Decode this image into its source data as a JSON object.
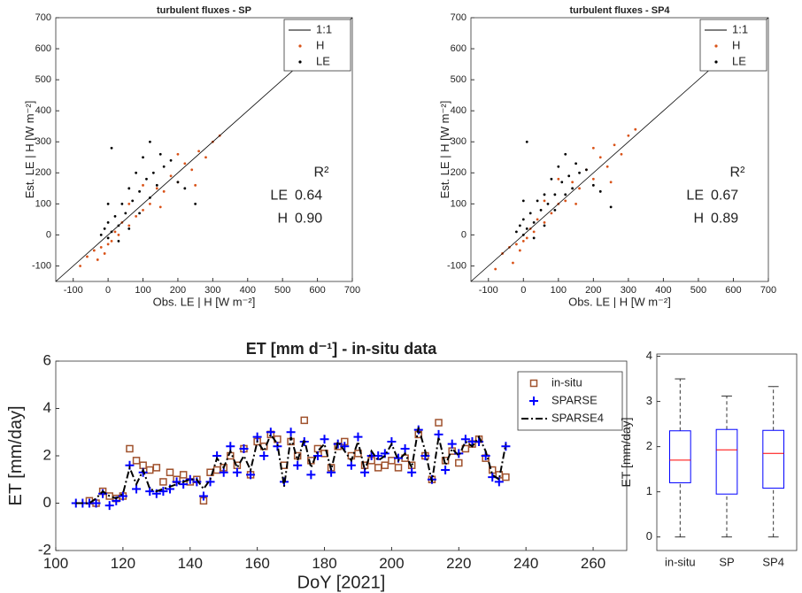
{
  "chart_data": [
    {
      "type": "scatter",
      "title": "turbulent fluxes - SP",
      "xlabel": "Obs. LE | H [W m⁻²]",
      "ylabel": "Est. LE | H [W m⁻²]",
      "xlim": [
        -150,
        700
      ],
      "ylim": [
        -150,
        700
      ],
      "xticks": [
        -100,
        0,
        100,
        200,
        300,
        400,
        500,
        600,
        700
      ],
      "yticks": [
        -100,
        0,
        100,
        200,
        300,
        400,
        500,
        600,
        700
      ],
      "legend": "northeast",
      "reference_line": {
        "name": "1:1",
        "color": "#000000"
      },
      "series": [
        {
          "name": "H",
          "color": "#d95319",
          "x": [
            -60,
            -40,
            -30,
            -20,
            -10,
            0,
            10,
            20,
            30,
            40,
            60,
            80,
            100,
            120,
            140,
            160,
            180,
            200,
            220,
            240,
            260,
            280,
            300,
            320,
            150,
            250,
            200,
            100,
            60,
            -80
          ],
          "y": [
            -70,
            -50,
            -80,
            -40,
            -60,
            -30,
            -20,
            10,
            0,
            40,
            30,
            60,
            80,
            100,
            150,
            140,
            190,
            170,
            230,
            210,
            270,
            250,
            300,
            320,
            90,
            160,
            260,
            160,
            100,
            -100
          ]
        },
        {
          "name": "LE",
          "color": "#000000",
          "x": [
            -20,
            -10,
            0,
            0,
            10,
            20,
            30,
            40,
            50,
            60,
            70,
            80,
            90,
            100,
            110,
            120,
            130,
            140,
            150,
            160,
            180,
            200,
            220,
            250,
            10,
            0,
            30,
            90,
            60,
            120
          ],
          "y": [
            0,
            20,
            -10,
            40,
            10,
            60,
            30,
            100,
            70,
            150,
            110,
            200,
            140,
            250,
            180,
            300,
            200,
            160,
            260,
            220,
            240,
            170,
            150,
            100,
            280,
            100,
            -20,
            70,
            20,
            120
          ]
        }
      ],
      "r2_label": "R²",
      "stats": [
        {
          "name": "LE",
          "r2": "0.64"
        },
        {
          "name": "H",
          "r2": "0.90"
        }
      ]
    },
    {
      "type": "scatter",
      "title": "turbulent fluxes - SP4",
      "xlabel": "Obs. LE | H [W m⁻²]",
      "ylabel": "Est. LE | H [W m⁻²]",
      "xlim": [
        -150,
        700
      ],
      "ylim": [
        -150,
        700
      ],
      "xticks": [
        -100,
        0,
        100,
        200,
        300,
        400,
        500,
        600,
        700
      ],
      "yticks": [
        -100,
        0,
        100,
        200,
        300,
        400,
        500,
        600,
        700
      ],
      "legend": "northeast",
      "reference_line": {
        "name": "1:1",
        "color": "#000000"
      },
      "series": [
        {
          "name": "H",
          "color": "#d95319",
          "x": [
            -60,
            -40,
            -30,
            -20,
            -10,
            0,
            10,
            20,
            30,
            40,
            60,
            80,
            100,
            120,
            140,
            160,
            180,
            200,
            220,
            240,
            260,
            280,
            300,
            320,
            150,
            250,
            200,
            100,
            60,
            -80
          ],
          "y": [
            -60,
            -40,
            -90,
            -30,
            -50,
            -20,
            -10,
            20,
            10,
            50,
            40,
            70,
            100,
            110,
            170,
            150,
            210,
            180,
            250,
            220,
            290,
            260,
            320,
            340,
            100,
            170,
            280,
            180,
            110,
            -110
          ]
        },
        {
          "name": "LE",
          "color": "#000000",
          "x": [
            -20,
            -10,
            0,
            0,
            10,
            20,
            30,
            40,
            50,
            60,
            70,
            80,
            90,
            100,
            110,
            120,
            130,
            140,
            150,
            160,
            180,
            200,
            220,
            250,
            10,
            0,
            30,
            90,
            60,
            120
          ],
          "y": [
            10,
            30,
            0,
            50,
            20,
            70,
            40,
            110,
            80,
            130,
            100,
            180,
            130,
            220,
            170,
            260,
            190,
            150,
            230,
            200,
            210,
            160,
            140,
            90,
            300,
            110,
            -10,
            80,
            30,
            130
          ]
        }
      ],
      "r2_label": "R²",
      "stats": [
        {
          "name": "LE",
          "r2": "0.67"
        },
        {
          "name": "H",
          "r2": "0.89"
        }
      ]
    },
    {
      "type": "line",
      "title": "ET [mm d⁻¹] - in-situ data",
      "xlabel": "DoY [2021]",
      "ylabel": "ET [mm/day]",
      "xlim": [
        100,
        270
      ],
      "ylim": [
        -2,
        6
      ],
      "xticks": [
        100,
        120,
        140,
        160,
        180,
        200,
        220,
        240,
        260
      ],
      "yticks": [
        -2,
        0,
        2,
        4,
        6
      ],
      "legend": "northeast",
      "x": [
        106,
        108,
        110,
        112,
        114,
        116,
        118,
        120,
        122,
        124,
        126,
        128,
        130,
        132,
        134,
        136,
        138,
        140,
        142,
        144,
        146,
        148,
        150,
        152,
        154,
        156,
        158,
        160,
        162,
        164,
        166,
        168,
        170,
        172,
        174,
        176,
        178,
        180,
        182,
        184,
        186,
        188,
        190,
        192,
        194,
        196,
        198,
        200,
        202,
        204,
        206,
        208,
        210,
        212,
        214,
        216,
        218,
        220,
        222,
        224,
        226,
        228,
        230,
        232,
        234
      ],
      "series": [
        {
          "name": "in-situ",
          "color": "#a0522d",
          "marker": "square",
          "line_style": "none",
          "values": [
            null,
            null,
            0.1,
            0.0,
            0.5,
            0.3,
            0.2,
            0.3,
            2.3,
            1.8,
            1.6,
            1.4,
            1.5,
            0.9,
            1.3,
            1.0,
            1.2,
            0.9,
            1.0,
            0.1,
            1.3,
            1.4,
            1.5,
            2.0,
            1.6,
            2.3,
            1.2,
            2.6,
            2.4,
            2.9,
            2.7,
            1.6,
            2.6,
            2.0,
            3.5,
            1.8,
            2.3,
            2.1,
            1.5,
            2.4,
            2.6,
            2.0,
            2.1,
            1.6,
            1.8,
            1.5,
            1.6,
            1.8,
            1.5,
            1.9,
            1.6,
            2.9,
            2.0,
            1.0,
            3.4,
            1.8,
            2.2,
            1.7,
            2.3,
            2.5,
            2.7,
            1.9,
            1.4,
            1.2,
            1.1
          ]
        },
        {
          "name": "SPARSE",
          "color": "#0000ff",
          "marker": "plus",
          "line_style": "none",
          "values": [
            0,
            0,
            0,
            0,
            0.4,
            -0.1,
            0.1,
            0.3,
            1.6,
            0.6,
            1.3,
            0.5,
            0.4,
            0.5,
            0.6,
            0.9,
            0.8,
            1.0,
            0.9,
            0.3,
            0.9,
            2.0,
            1.3,
            2.4,
            1.3,
            2.3,
            1.2,
            2.8,
            2.0,
            3.0,
            2.4,
            0.9,
            3.0,
            1.6,
            2.6,
            1.2,
            2.0,
            2.7,
            1.3,
            2.5,
            2.4,
            1.6,
            2.8,
            1.3,
            2.0,
            2.0,
            2.1,
            2.6,
            1.9,
            2.3,
            1.3,
            3.1,
            2.0,
            1.0,
            2.9,
            1.4,
            2.5,
            2.1,
            2.7,
            2.6,
            2.6,
            2.0,
            1.1,
            0.9,
            2.4
          ]
        },
        {
          "name": "SPARSE4",
          "color": "#000000",
          "marker": "none",
          "line_style": "dashdot",
          "values": [
            0,
            0,
            0,
            0.2,
            0.5,
            0.3,
            0.2,
            0.4,
            1.5,
            0.8,
            1.4,
            0.6,
            0.5,
            0.6,
            0.7,
            0.8,
            0.9,
            1.0,
            1.0,
            0.6,
            1.0,
            1.9,
            1.5,
            2.2,
            1.5,
            2.0,
            1.4,
            2.6,
            2.2,
            2.9,
            2.5,
            0.7,
            2.8,
            1.8,
            2.7,
            1.5,
            2.2,
            2.5,
            1.4,
            2.6,
            2.2,
            1.8,
            2.6,
            1.4,
            2.2,
            1.8,
            2.0,
            2.5,
            1.8,
            2.1,
            1.5,
            3.2,
            2.2,
            0.9,
            2.8,
            1.6,
            2.3,
            2.0,
            2.6,
            2.4,
            2.8,
            2.2,
            1.2,
            1.0,
            2.5
          ]
        }
      ]
    },
    {
      "type": "box",
      "ylabel": "ET [mm/day]",
      "ylim": [
        -0.3,
        4.05
      ],
      "yticks": [
        0,
        1,
        2,
        3,
        4
      ],
      "categories": [
        "in-situ",
        "SP",
        "SP4"
      ],
      "color": "#0000ff",
      "median_color": "#ff0000",
      "boxes": [
        {
          "min": 0,
          "q1": 1.2,
          "median": 1.7,
          "q3": 2.35,
          "max": 3.5
        },
        {
          "min": 0,
          "q1": 0.95,
          "median": 1.93,
          "q3": 2.38,
          "max": 3.12
        },
        {
          "min": 0,
          "q1": 1.08,
          "median": 1.85,
          "q3": 2.36,
          "max": 3.33
        }
      ]
    }
  ]
}
